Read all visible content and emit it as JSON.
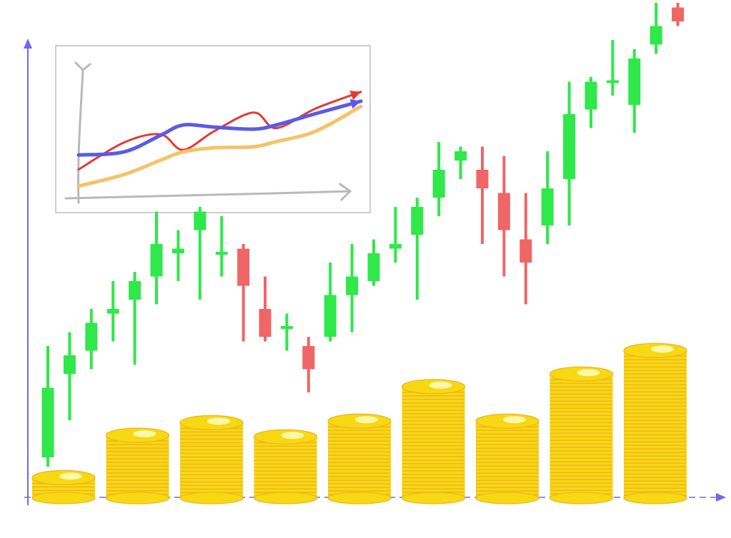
{
  "colors": {
    "background": "#ffffff",
    "axis": "#6b6bf0",
    "up_candle": "#2fe84a",
    "down_candle": "#f06565",
    "coin_face": "#f6d813",
    "coin_edge": "#f2b21e",
    "coin_highlight": "#fff7a8",
    "inset_border": "#bdbdbd",
    "inset_axis": "#b9b9b9",
    "inset_red": "#e53935",
    "inset_blue": "#5a5ae8",
    "inset_orange": "#f7c267"
  },
  "chart_data": [
    {
      "type": "candlestick",
      "title": "",
      "xlabel": "",
      "ylabel": "",
      "ylim": [
        0,
        100
      ],
      "grid": false,
      "candles": [
        {
          "open": 6,
          "close": 21,
          "high": 30,
          "low": 4
        },
        {
          "open": 24,
          "close": 28,
          "high": 33,
          "low": 14
        },
        {
          "open": 29,
          "close": 35,
          "high": 38,
          "low": 25
        },
        {
          "open": 37,
          "close": 38,
          "high": 44,
          "low": 31
        },
        {
          "open": 40,
          "close": 44,
          "high": 46,
          "low": 26
        },
        {
          "open": 45,
          "close": 52,
          "high": 59,
          "low": 39
        },
        {
          "open": 50,
          "close": 51,
          "high": 55,
          "low": 44
        },
        {
          "open": 55,
          "close": 59,
          "high": 60,
          "low": 40
        },
        {
          "open": 50,
          "close": 50,
          "high": 58,
          "low": 45
        },
        {
          "open": 51,
          "close": 43,
          "high": 52,
          "low": 31
        },
        {
          "open": 38,
          "close": 32,
          "high": 45,
          "low": 31
        },
        {
          "open": 34,
          "close": 34,
          "high": 37,
          "low": 29
        },
        {
          "open": 30,
          "close": 25,
          "high": 32,
          "low": 20
        },
        {
          "open": 32,
          "close": 41,
          "high": 48,
          "low": 31
        },
        {
          "open": 41,
          "close": 45,
          "high": 52,
          "low": 33
        },
        {
          "open": 44,
          "close": 50,
          "high": 53,
          "low": 43
        },
        {
          "open": 51,
          "close": 52,
          "high": 60,
          "low": 48
        },
        {
          "open": 54,
          "close": 60,
          "high": 62,
          "low": 40
        },
        {
          "open": 62,
          "close": 68,
          "high": 74,
          "low": 58
        },
        {
          "open": 70,
          "close": 72,
          "high": 73,
          "low": 66
        },
        {
          "open": 68,
          "close": 64,
          "high": 73,
          "low": 52
        },
        {
          "open": 63,
          "close": 55,
          "high": 71,
          "low": 45
        },
        {
          "open": 53,
          "close": 48,
          "high": 63,
          "low": 39
        },
        {
          "open": 56,
          "close": 64,
          "high": 72,
          "low": 52
        },
        {
          "open": 66,
          "close": 80,
          "high": 87,
          "low": 56
        },
        {
          "open": 81,
          "close": 87,
          "high": 88,
          "low": 77
        },
        {
          "open": 87,
          "close": 87,
          "high": 96,
          "low": 84
        },
        {
          "open": 82,
          "close": 92,
          "high": 94,
          "low": 76
        },
        {
          "open": 95,
          "close": 99,
          "high": 104,
          "low": 93
        },
        {
          "open": 103,
          "close": 100,
          "high": 104,
          "low": 99
        }
      ]
    },
    {
      "type": "bar",
      "style": "coin-stacks",
      "title": "",
      "xlabel": "",
      "ylabel": "",
      "ylim": [
        0,
        100
      ],
      "grid": false,
      "values": [
        13,
        40,
        48,
        39,
        49,
        71,
        49,
        79,
        94
      ]
    },
    {
      "type": "line",
      "title": "",
      "xlabel": "",
      "ylabel": "",
      "ylim": [
        0,
        100
      ],
      "xlim": [
        0,
        100
      ],
      "grid": false,
      "series": [
        {
          "color": "red",
          "points": [
            [
              0,
              21
            ],
            [
              16,
              47
            ],
            [
              29,
              55
            ],
            [
              37,
              40
            ],
            [
              48,
              58
            ],
            [
              62,
              76
            ],
            [
              70,
              61
            ],
            [
              84,
              80
            ],
            [
              100,
              96
            ]
          ]
        },
        {
          "color": "blue",
          "points": [
            [
              0,
              35
            ],
            [
              16,
              38
            ],
            [
              29,
              54
            ],
            [
              37,
              64
            ],
            [
              48,
              62
            ],
            [
              62,
              60
            ],
            [
              70,
              64
            ],
            [
              84,
              75
            ],
            [
              100,
              87
            ]
          ]
        },
        {
          "color": "orange",
          "points": [
            [
              0,
              5
            ],
            [
              16,
              16
            ],
            [
              29,
              30
            ],
            [
              37,
              38
            ],
            [
              48,
              42
            ],
            [
              62,
              43
            ],
            [
              70,
              48
            ],
            [
              84,
              58
            ],
            [
              100,
              82
            ]
          ]
        }
      ]
    }
  ]
}
